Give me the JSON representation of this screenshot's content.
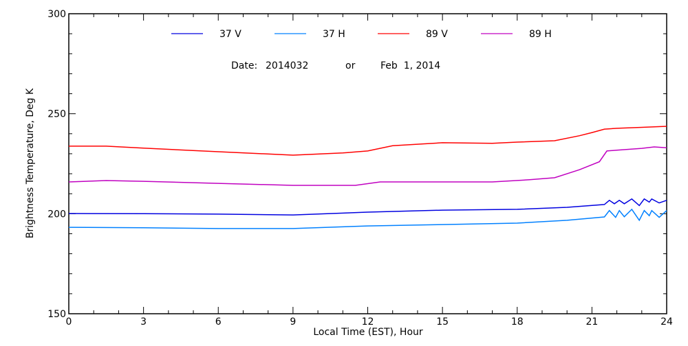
{
  "chart_data": {
    "type": "line",
    "title": "",
    "annotation": {
      "date_label": "Date:",
      "date_code": "2014032",
      "or_label": "or",
      "date_text": "Feb  1, 2014"
    },
    "xlabel": "Local Time (EST), Hour",
    "ylabel": "Brightness Temperature, Deg K",
    "xlim": [
      0,
      24
    ],
    "ylim": [
      150,
      300
    ],
    "xticks": [
      0,
      3,
      6,
      9,
      12,
      15,
      18,
      21,
      24
    ],
    "xtick_labels": [
      "0",
      "3",
      "6",
      "9",
      "12",
      "15",
      "18",
      "21",
      "24"
    ],
    "yticks": [
      150,
      200,
      250,
      300
    ],
    "ytick_labels": [
      "150",
      "200",
      "250",
      "300"
    ],
    "x_minor_step": 1,
    "y_minor_step": 10,
    "grid": false,
    "legend_position": "top-center",
    "series": [
      {
        "name": "37 V",
        "color": "#0000e0",
        "x": [
          0,
          3,
          6,
          9,
          12,
          15,
          18,
          20,
          21.5,
          21.7,
          21.9,
          22.1,
          22.3,
          22.6,
          22.9,
          23.1,
          23.3,
          23.4,
          23.7,
          24
        ],
        "y": [
          200.1,
          200.0,
          199.8,
          199.4,
          200.8,
          201.8,
          202.2,
          203.2,
          204.6,
          206.7,
          205.0,
          206.7,
          205.0,
          207.4,
          204.1,
          207.4,
          205.8,
          207.4,
          205.4,
          206.7
        ]
      },
      {
        "name": "37 H",
        "color": "#0080ff",
        "x": [
          0,
          3,
          6,
          9,
          12,
          15,
          18,
          20,
          21.5,
          21.7,
          21.95,
          22.1,
          22.3,
          22.6,
          22.9,
          23.1,
          23.3,
          23.4,
          23.7,
          24
        ],
        "y": [
          193.2,
          193.0,
          192.6,
          192.6,
          193.9,
          194.6,
          195.3,
          196.7,
          198.4,
          201.6,
          198.2,
          201.6,
          198.5,
          202.2,
          196.7,
          201.6,
          199.0,
          201.6,
          198.2,
          201.6
        ]
      },
      {
        "name": "89 V",
        "color": "#ff0000",
        "x": [
          0,
          1.5,
          3,
          6,
          9,
          11,
          12,
          13,
          15,
          17,
          18,
          19.5,
          20.5,
          21,
          21.5,
          22,
          23,
          24
        ],
        "y": [
          233.8,
          233.8,
          232.8,
          231.0,
          229.3,
          230.4,
          231.4,
          234.0,
          235.5,
          235.2,
          235.8,
          236.5,
          239.0,
          240.6,
          242.3,
          242.7,
          243.2,
          243.7
        ]
      },
      {
        "name": "89 H",
        "color": "#c000c0",
        "x": [
          0,
          1.5,
          3,
          6,
          9,
          11.5,
          12.5,
          15,
          17,
          18.5,
          19.5,
          20.5,
          21.3,
          21.6,
          22,
          23,
          23.5,
          24
        ],
        "y": [
          215.9,
          216.6,
          216.2,
          215.2,
          214.2,
          214.2,
          215.9,
          215.9,
          215.9,
          217.0,
          218.0,
          222.0,
          226.0,
          231.4,
          231.8,
          232.7,
          233.4,
          233.0
        ]
      }
    ]
  }
}
